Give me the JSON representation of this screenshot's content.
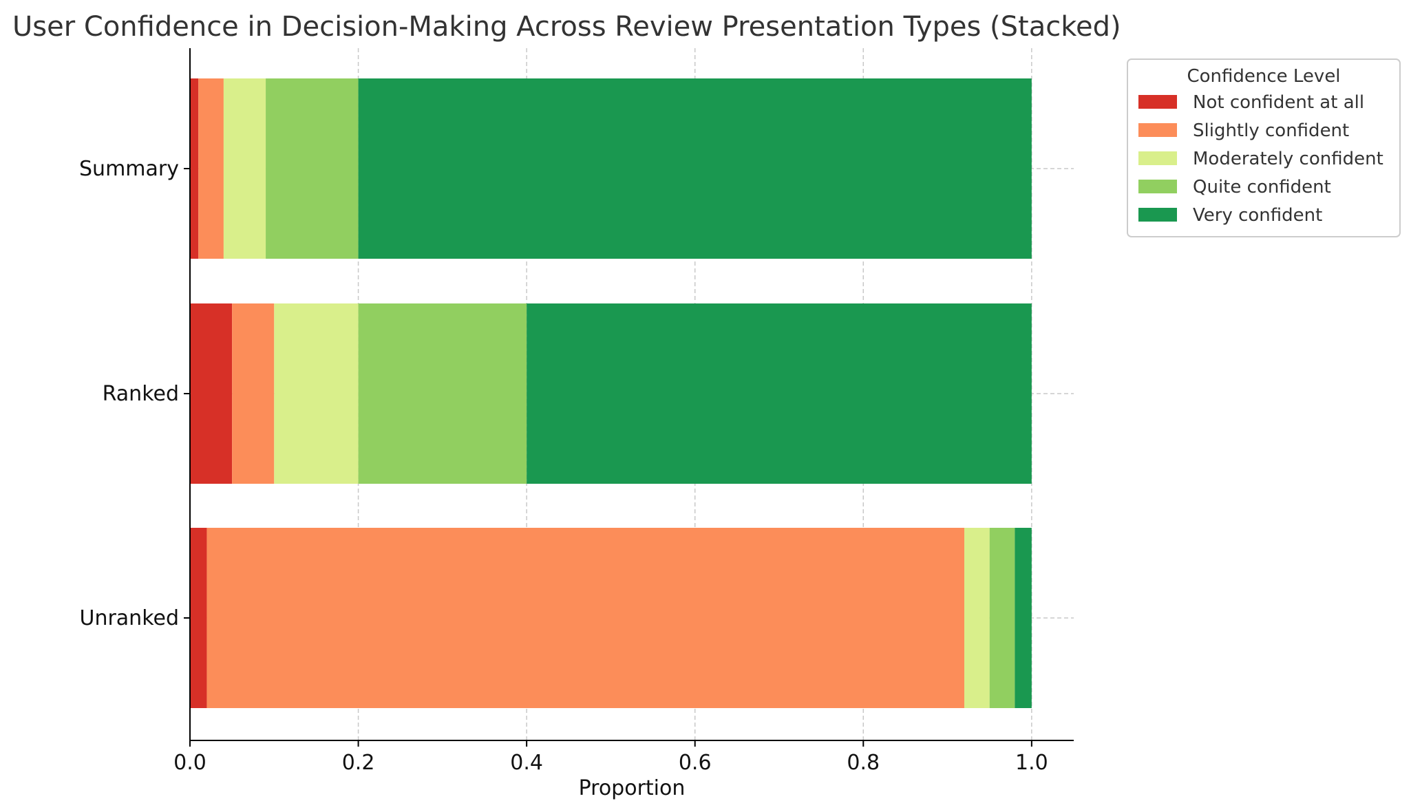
{
  "chart_data": {
    "type": "bar",
    "orientation": "horizontal",
    "stacked": true,
    "title": "User Confidence in Decision-Making Across Review Presentation Types (Stacked)",
    "xlabel": "Proportion",
    "ylabel": "",
    "xlim": [
      0,
      1.05
    ],
    "xticks": [
      "0.0",
      "0.2",
      "0.4",
      "0.6",
      "0.8",
      "1.0"
    ],
    "grid": true,
    "legend_title": "Confidence Level",
    "legend_position": "outside-top-right",
    "categories": [
      "Summary",
      "Ranked",
      "Unranked"
    ],
    "series": [
      {
        "name": "Not confident at all",
        "color": "#d73027",
        "values": [
          0.01,
          0.05,
          0.02
        ]
      },
      {
        "name": "Slightly confident",
        "color": "#fc8d59",
        "values": [
          0.03,
          0.05,
          0.9
        ]
      },
      {
        "name": "Moderately confident",
        "color": "#d9ef8b",
        "values": [
          0.05,
          0.1,
          0.03
        ]
      },
      {
        "name": "Quite confident",
        "color": "#91cf60",
        "values": [
          0.11,
          0.2,
          0.03
        ]
      },
      {
        "name": "Very confident",
        "color": "#1a9850",
        "values": [
          0.8,
          0.6,
          0.02
        ]
      }
    ]
  }
}
